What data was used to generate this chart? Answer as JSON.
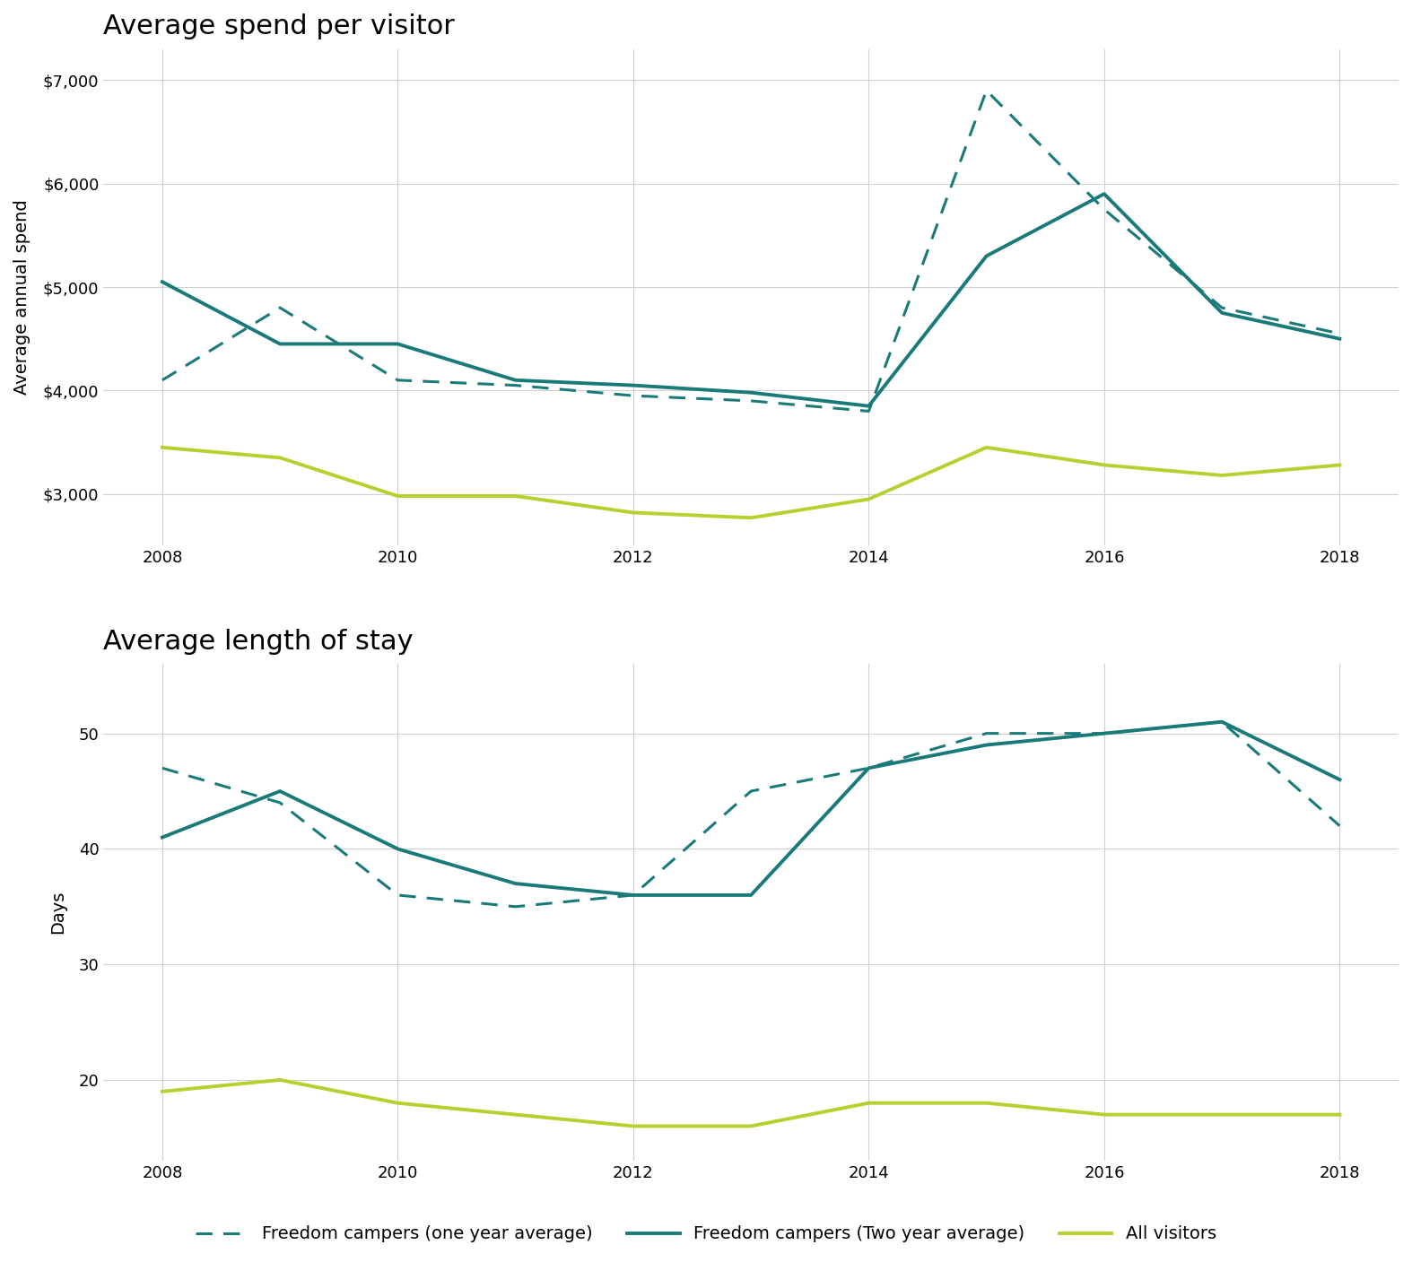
{
  "spend_years": [
    2008,
    2009,
    2010,
    2011,
    2012,
    2013,
    2014,
    2015,
    2016,
    2017,
    2018
  ],
  "spend_one_year": [
    4100,
    4800,
    4100,
    4050,
    3950,
    3900,
    3800,
    6900,
    5750,
    4800,
    4550
  ],
  "spend_two_year": [
    5050,
    4450,
    4450,
    4100,
    4050,
    3980,
    3850,
    5300,
    5900,
    4750,
    4500
  ],
  "spend_all": [
    3450,
    3350,
    2980,
    2980,
    2820,
    2770,
    2950,
    3450,
    3280,
    3180,
    3280
  ],
  "stay_years": [
    2008,
    2009,
    2010,
    2011,
    2012,
    2013,
    2014,
    2015,
    2016,
    2017,
    2018
  ],
  "stay_one_year": [
    47,
    44,
    36,
    35,
    36,
    45,
    47,
    50,
    50,
    51,
    42
  ],
  "stay_two_year": [
    41,
    45,
    40,
    37,
    36,
    36,
    47,
    49,
    50,
    51,
    46
  ],
  "stay_all": [
    19,
    20,
    18,
    17,
    16,
    16,
    18,
    18,
    17,
    17,
    17
  ],
  "teal_color": "#1a7a7a",
  "lime_color": "#b5d12e",
  "title1": "Average spend per visitor",
  "title2": "Average length of stay",
  "ylabel1": "Average annual spend",
  "ylabel2": "Days",
  "legend_labels": [
    "Freedom campers (one year average)",
    "Freedom campers (Two year average)",
    "All visitors"
  ],
  "spend_yticks": [
    3000,
    4000,
    5000,
    6000,
    7000
  ],
  "stay_yticks": [
    20,
    30,
    40,
    50
  ],
  "xticks": [
    2008,
    2010,
    2012,
    2014,
    2016,
    2018
  ],
  "bg_color": "#ffffff",
  "grid_color": "#d0d0d0"
}
